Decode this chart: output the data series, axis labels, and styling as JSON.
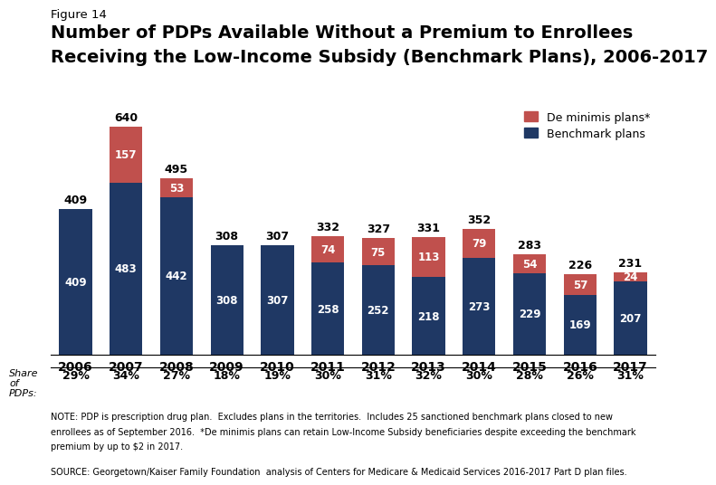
{
  "years": [
    "2006",
    "2007",
    "2008",
    "2009",
    "2010",
    "2011",
    "2012",
    "2013",
    "2014",
    "2015",
    "2016",
    "2017"
  ],
  "benchmark": [
    409,
    483,
    442,
    308,
    307,
    258,
    252,
    218,
    273,
    229,
    169,
    207
  ],
  "de_minimis": [
    0,
    157,
    53,
    0,
    0,
    74,
    75,
    113,
    79,
    54,
    57,
    24
  ],
  "totals": [
    409,
    640,
    495,
    308,
    307,
    332,
    327,
    331,
    352,
    283,
    226,
    231
  ],
  "share": [
    "29%",
    "34%",
    "27%",
    "18%",
    "19%",
    "30%",
    "31%",
    "32%",
    "30%",
    "28%",
    "26%",
    "31%"
  ],
  "benchmark_color": "#1f3864",
  "de_minimis_color": "#c0504d",
  "background_color": "#ffffff",
  "figure_label": "Figure 14",
  "title_line1": "Number of PDPs Available Without a Premium to Enrollees",
  "title_line2": "Receiving the Low-Income Subsidy (Benchmark Plans), 2006-2017",
  "legend_de_minimis": "De minimis plans*",
  "legend_benchmark": "Benchmark plans",
  "note_line1": "NOTE: PDP is prescription drug plan.  Excludes plans in the territories.  Includes 25 sanctioned benchmark plans closed to new",
  "note_line2": "enrollees as of September 2016.  *De minimis plans can retain Low-Income Subsidy beneficiaries despite exceeding the benchmark",
  "note_line3": "premium by up to $2 in 2017.",
  "source_line": "SOURCE: Georgetown/Kaiser Family Foundation  analysis of Centers for Medicare & Medicaid Services 2016-2017 Part D plan files.",
  "ylim": [
    0,
    700
  ],
  "bar_width": 0.65
}
